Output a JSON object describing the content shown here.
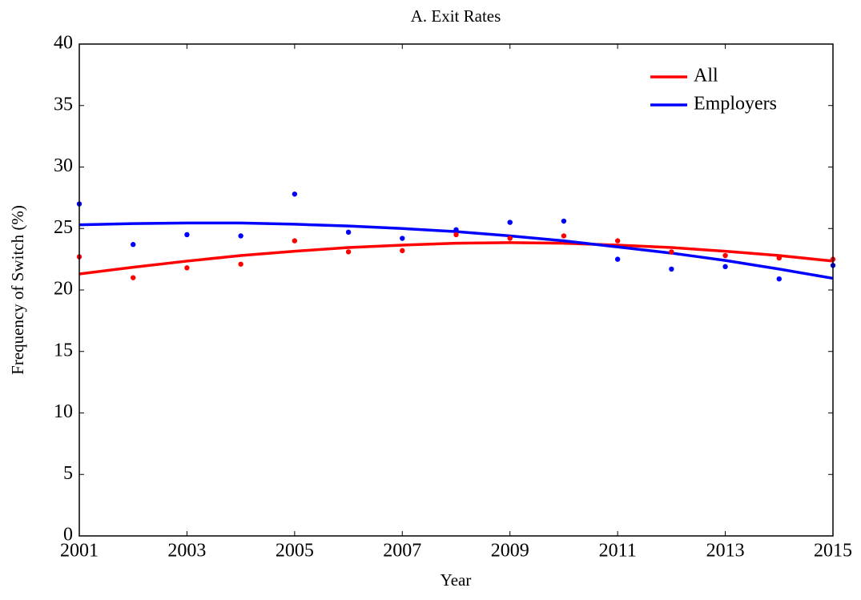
{
  "chart_data": {
    "type": "scatter-fit",
    "title": "A. Exit Rates",
    "x_label": "Year",
    "y_label": "Frequency of Switch (%)",
    "x": [
      2001,
      2002,
      2003,
      2004,
      2005,
      2006,
      2007,
      2008,
      2009,
      2010,
      2011,
      2012,
      2013,
      2014,
      2015
    ],
    "series": [
      {
        "name": "All",
        "color": "#ff0000",
        "values": [
          22.7,
          21.0,
          21.8,
          22.1,
          24.0,
          23.1,
          23.2,
          24.5,
          24.2,
          24.4,
          24.0,
          23.1,
          22.8,
          22.6,
          22.5
        ],
        "fit": [
          21.3,
          21.85,
          22.35,
          22.8,
          23.15,
          23.45,
          23.65,
          23.8,
          23.85,
          23.8,
          23.65,
          23.45,
          23.15,
          22.8,
          22.35
        ]
      },
      {
        "name": "Employers",
        "color": "#0000ff",
        "values": [
          27.0,
          23.7,
          24.5,
          24.4,
          27.8,
          24.7,
          24.2,
          24.9,
          25.5,
          25.6,
          22.5,
          21.7,
          21.9,
          20.9,
          22.0
        ],
        "fit": [
          25.3,
          25.4,
          25.45,
          25.45,
          25.35,
          25.2,
          25.0,
          24.75,
          24.4,
          24.0,
          23.5,
          23.0,
          22.4,
          21.7,
          20.95
        ]
      }
    ],
    "xlim": [
      2001,
      2015
    ],
    "xticks": [
      2001,
      2003,
      2005,
      2007,
      2009,
      2011,
      2013,
      2015
    ],
    "ylim": [
      0,
      40
    ],
    "yticks": [
      0,
      5,
      10,
      15,
      20,
      25,
      30,
      35,
      40
    ],
    "legend": "top-right"
  }
}
